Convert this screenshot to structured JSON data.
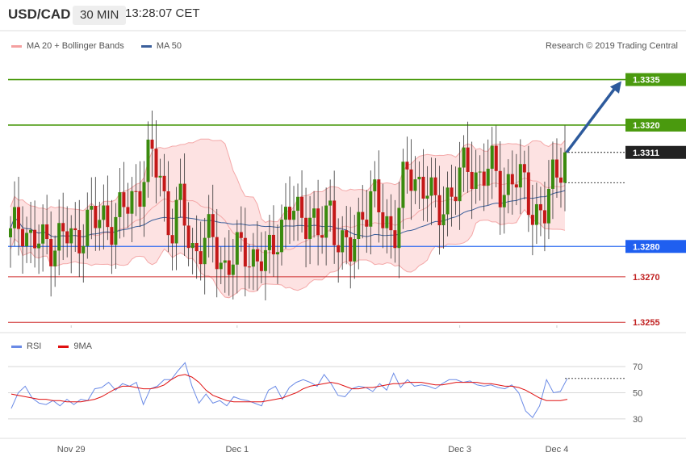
{
  "header": {
    "symbol": "USD/CAD",
    "interval": "30 MIN",
    "time": "13:28:07 CET"
  },
  "legend": {
    "bollinger": "MA 20 + Bollinger Bands",
    "ma50": "MA 50"
  },
  "research": "Research © 2019 Trading Central",
  "rsi_legend": {
    "rsi": "RSI",
    "ma9": "9MA"
  },
  "colors": {
    "up_candle": "#3a8a0e",
    "down_candle": "#c41818",
    "bollinger": "#f4a8a8",
    "band_fill": "#fde2e2",
    "ma50": "#3b5f9b",
    "target_line": "#4a9a0e",
    "current_level": "#222222",
    "support_line": "#d03030",
    "pivot_line": "#2e6bf0",
    "arrow": "#2d5a9c",
    "rsi": "#6a8ae6",
    "rsi_ma": "#e01010"
  },
  "chart_data": [
    {
      "type": "candlestick",
      "title": "USD/CAD 30 MIN",
      "y_levels": [
        {
          "value": 1.3335,
          "label": "1.3335",
          "kind": "target"
        },
        {
          "value": 1.332,
          "label": "1.3320",
          "kind": "target"
        },
        {
          "value": 1.3311,
          "label": "1.3311",
          "kind": "last"
        },
        {
          "value": 1.328,
          "label": "1.3280",
          "kind": "pivot"
        },
        {
          "value": 1.327,
          "label": "1.3270",
          "kind": "support"
        },
        {
          "value": 1.3255,
          "label": "1.3255",
          "kind": "support"
        }
      ],
      "ylim": [
        1.3254,
        1.3341
      ],
      "x_labels": [
        {
          "label": "Nov 29",
          "index": 15
        },
        {
          "label": "Dec 1",
          "index": 56
        },
        {
          "label": "Dec 3",
          "index": 111
        },
        {
          "label": "Dec 4",
          "index": 135
        }
      ],
      "close_path": [
        1.3282,
        1.329,
        1.3281,
        1.328,
        1.3283,
        1.3283,
        1.3281,
        1.3289,
        1.3287,
        1.329,
        1.3289,
        1.3293,
        1.33,
        1.3308,
        1.3305,
        1.3285,
        1.3293,
        1.328,
        1.328,
        1.3282,
        1.3274,
        1.3275,
        1.328,
        1.3276,
        1.3273,
        1.3286,
        1.3291,
        1.3289,
        1.3293,
        1.3281,
        1.3293,
        1.3281,
        1.3276,
        1.3294,
        1.3296,
        1.3287,
        1.3287,
        1.3302,
        1.3302,
        1.3302,
        1.3288,
        1.3298,
        1.3301,
        1.3306,
        1.3304,
        1.3305,
        1.33,
        1.3302,
        1.33,
        1.3294,
        1.3288,
        1.3304,
        1.3311
      ],
      "ma50_last": 1.33,
      "bollinger_last": [
        1.3298,
        1.3306,
        1.331
      ],
      "forecast": {
        "from": 1.3311,
        "to": 1.3335
      }
    },
    {
      "type": "line",
      "title": "RSI",
      "series": [
        {
          "name": "RSI",
          "values": [
            38,
            50,
            55,
            46,
            42,
            41,
            44,
            40,
            45,
            41,
            45,
            44,
            53,
            54,
            58,
            52,
            57,
            55,
            58,
            41,
            53,
            55,
            60,
            60,
            67,
            73,
            55,
            42,
            49,
            42,
            44,
            40,
            47,
            45,
            44,
            42,
            40,
            52,
            55,
            45,
            54,
            58,
            60,
            58,
            55,
            64,
            57,
            48,
            47,
            53,
            55,
            54,
            51,
            57,
            52,
            65,
            54,
            60,
            55,
            56,
            55,
            53,
            57,
            60,
            60,
            58,
            59,
            56,
            55,
            56,
            54,
            53,
            56,
            50,
            36,
            31,
            40,
            60,
            50,
            51,
            61
          ]
        },
        {
          "name": "9MA",
          "values": [
            49,
            48,
            47,
            46,
            45,
            45,
            44,
            44,
            43,
            43,
            43,
            44,
            45,
            47,
            50,
            53,
            55,
            55,
            54,
            53,
            53,
            54,
            56,
            60,
            63,
            64,
            62,
            58,
            52,
            48,
            46,
            44,
            43,
            43,
            43,
            43,
            43,
            44,
            45,
            46,
            48,
            50,
            53,
            55,
            56,
            57,
            58,
            57,
            55,
            53,
            53,
            54,
            54,
            55,
            56,
            57,
            57,
            58,
            58,
            58,
            57,
            56,
            56,
            57,
            58,
            58,
            58,
            58,
            57,
            57,
            56,
            55,
            55,
            54,
            52,
            49,
            46,
            44,
            44,
            44,
            45
          ]
        }
      ],
      "yticks": [
        30,
        50,
        70
      ],
      "ylim": [
        20,
        80
      ]
    }
  ]
}
